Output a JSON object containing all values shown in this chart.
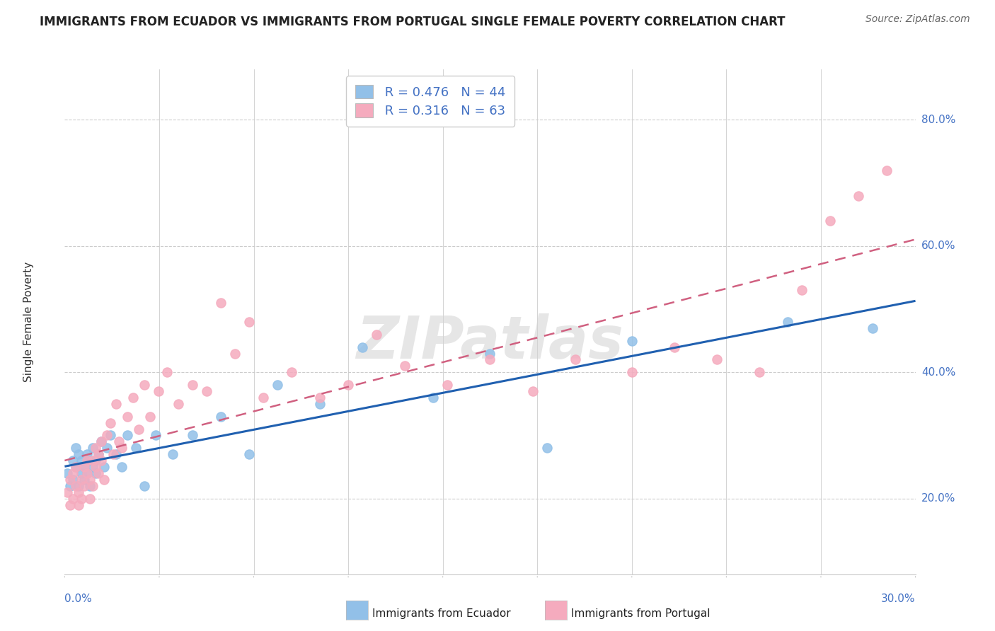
{
  "title": "IMMIGRANTS FROM ECUADOR VS IMMIGRANTS FROM PORTUGAL SINGLE FEMALE POVERTY CORRELATION CHART",
  "source": "Source: ZipAtlas.com",
  "ylabel": "Single Female Poverty",
  "y_ticks": [
    0.2,
    0.4,
    0.6,
    0.8
  ],
  "y_tick_labels": [
    "20.0%",
    "40.0%",
    "60.0%",
    "80.0%"
  ],
  "x_range": [
    0.0,
    0.3
  ],
  "y_range": [
    0.08,
    0.88
  ],
  "r_ecuador": 0.476,
  "n_ecuador": 44,
  "r_portugal": 0.316,
  "n_portugal": 63,
  "color_ecuador": "#92C0E8",
  "color_portugal": "#F5ABBE",
  "trendline_ecuador_color": "#2060B0",
  "trendline_portugal_color": "#D06080",
  "trendline_portugal_style": "--",
  "background_color": "#FFFFFF",
  "watermark": "ZIPatlas",
  "ecuador_scatter_x": [
    0.001,
    0.002,
    0.003,
    0.003,
    0.004,
    0.004,
    0.005,
    0.005,
    0.006,
    0.006,
    0.007,
    0.007,
    0.008,
    0.008,
    0.009,
    0.009,
    0.01,
    0.01,
    0.011,
    0.011,
    0.012,
    0.013,
    0.014,
    0.015,
    0.016,
    0.018,
    0.02,
    0.022,
    0.025,
    0.028,
    0.032,
    0.038,
    0.045,
    0.055,
    0.065,
    0.075,
    0.09,
    0.105,
    0.13,
    0.15,
    0.17,
    0.2,
    0.255,
    0.285
  ],
  "ecuador_scatter_y": [
    0.24,
    0.22,
    0.26,
    0.23,
    0.25,
    0.28,
    0.22,
    0.27,
    0.24,
    0.26,
    0.25,
    0.23,
    0.27,
    0.24,
    0.26,
    0.22,
    0.28,
    0.25,
    0.26,
    0.24,
    0.27,
    0.29,
    0.25,
    0.28,
    0.3,
    0.27,
    0.25,
    0.3,
    0.28,
    0.22,
    0.3,
    0.27,
    0.3,
    0.33,
    0.27,
    0.38,
    0.35,
    0.44,
    0.36,
    0.43,
    0.28,
    0.45,
    0.48,
    0.47
  ],
  "portugal_scatter_x": [
    0.001,
    0.002,
    0.002,
    0.003,
    0.003,
    0.004,
    0.004,
    0.005,
    0.005,
    0.006,
    0.006,
    0.007,
    0.007,
    0.008,
    0.008,
    0.009,
    0.009,
    0.01,
    0.01,
    0.011,
    0.011,
    0.012,
    0.012,
    0.013,
    0.013,
    0.014,
    0.015,
    0.016,
    0.017,
    0.018,
    0.019,
    0.02,
    0.022,
    0.024,
    0.026,
    0.028,
    0.03,
    0.033,
    0.036,
    0.04,
    0.045,
    0.05,
    0.055,
    0.06,
    0.065,
    0.07,
    0.08,
    0.09,
    0.1,
    0.11,
    0.12,
    0.135,
    0.15,
    0.165,
    0.18,
    0.2,
    0.215,
    0.23,
    0.245,
    0.26,
    0.27,
    0.28,
    0.29
  ],
  "portugal_scatter_y": [
    0.21,
    0.19,
    0.23,
    0.2,
    0.24,
    0.22,
    0.25,
    0.19,
    0.21,
    0.23,
    0.2,
    0.25,
    0.22,
    0.26,
    0.24,
    0.23,
    0.2,
    0.26,
    0.22,
    0.28,
    0.25,
    0.27,
    0.24,
    0.29,
    0.26,
    0.23,
    0.3,
    0.32,
    0.27,
    0.35,
    0.29,
    0.28,
    0.33,
    0.36,
    0.31,
    0.38,
    0.33,
    0.37,
    0.4,
    0.35,
    0.38,
    0.37,
    0.51,
    0.43,
    0.48,
    0.36,
    0.4,
    0.36,
    0.38,
    0.46,
    0.41,
    0.38,
    0.42,
    0.37,
    0.42,
    0.4,
    0.44,
    0.42,
    0.4,
    0.53,
    0.64,
    0.68,
    0.72
  ],
  "legend_r_color": "#4472C4",
  "legend_n_color": "#4472C4",
  "axis_color": "#4472C4",
  "axis_label_color": "#333333",
  "grid_color": "#CCCCCC",
  "title_fontsize": 12,
  "source_fontsize": 10,
  "legend_fontsize": 13,
  "axis_fontsize": 11
}
